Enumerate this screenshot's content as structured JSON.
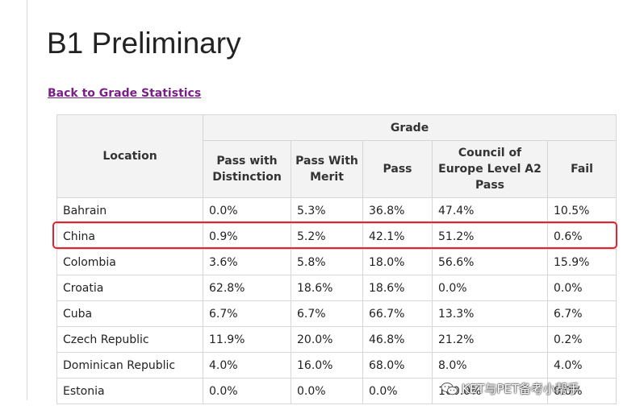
{
  "page": {
    "title": "B1 Preliminary",
    "back_link": "Back to Grade Statistics"
  },
  "table": {
    "location_header": "Location",
    "grade_header": "Grade",
    "columns": [
      "Pass with Distinction",
      "Pass With Merit",
      "Pass",
      "Council of Europe Level A2 Pass",
      "Fail"
    ],
    "rows": [
      {
        "location": "Bahrain",
        "values": [
          "0.0%",
          "5.3%",
          "36.8%",
          "47.4%",
          "10.5%"
        ]
      },
      {
        "location": "China",
        "values": [
          "0.9%",
          "5.2%",
          "42.1%",
          "51.2%",
          "0.6%"
        ]
      },
      {
        "location": "Colombia",
        "values": [
          "3.6%",
          "5.8%",
          "18.0%",
          "56.6%",
          "15.9%"
        ]
      },
      {
        "location": "Croatia",
        "values": [
          "62.8%",
          "18.6%",
          "18.6%",
          "0.0%",
          "0.0%"
        ]
      },
      {
        "location": "Cuba",
        "values": [
          "6.7%",
          "6.7%",
          "66.7%",
          "13.3%",
          "6.7%"
        ]
      },
      {
        "location": "Czech Republic",
        "values": [
          "11.9%",
          "20.0%",
          "46.8%",
          "21.2%",
          "0.2%"
        ]
      },
      {
        "location": "Dominican Republic",
        "values": [
          "4.0%",
          "16.0%",
          "68.0%",
          "8.0%",
          "4.0%"
        ]
      },
      {
        "location": "Estonia",
        "values": [
          "0.0%",
          "0.0%",
          "0.0%",
          "100.0%",
          "0.0%"
        ]
      }
    ]
  },
  "highlight": {
    "row_location": "China",
    "color": "#e8212e"
  },
  "watermark": {
    "text": "KET与PET备考小帮手",
    "icon": "wechat-icon"
  },
  "colors": {
    "link": "#7a1f86",
    "header_bg": "#f3f3f3",
    "border": "#d6d6d6"
  }
}
